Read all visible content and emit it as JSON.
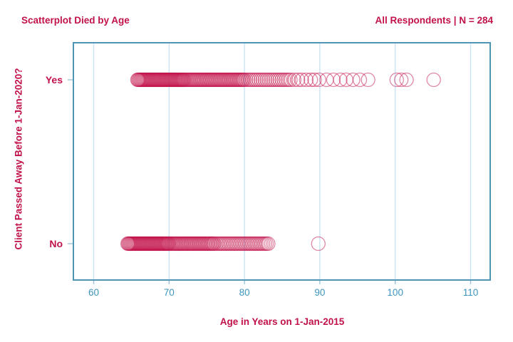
{
  "header": {
    "title": "Scatterplot Died by Age",
    "subtitle": "All Respondents | N = 284"
  },
  "colors": {
    "crimson_text": "#C1124A",
    "marker_stroke": "#C2114A",
    "marker_opacity": 0.5,
    "tick_label_blue": "#3D95BF",
    "plot_border": "#4E94B4",
    "gridline": "#CCE3F2",
    "tick_mark": "#9CC3DA"
  },
  "chart_data": {
    "type": "scatter",
    "title": "Scatterplot Died by Age",
    "annotation": "All Respondents | N = 284",
    "n_total": 284,
    "xlabel": "Age in Years on 1-Jan-2015",
    "ylabel": "Client Passed Away Before 1-Jan-2020?",
    "x_ticks": [
      60,
      70,
      80,
      90,
      100,
      110
    ],
    "xlim": [
      57.3,
      112.6
    ],
    "y_categories": [
      "Yes",
      "No"
    ],
    "grid": "vertical-gridlines-only",
    "legend": "none",
    "marker": "open-circle semi-transparent",
    "series": [
      {
        "name": "Yes",
        "count": 156,
        "ages": [
          65.8,
          65.9,
          66,
          66.1,
          66.2,
          66.3,
          66.4,
          66.5,
          66.6,
          66.7,
          66.8,
          66.9,
          67,
          67.1,
          67.2,
          67.3,
          67.4,
          67.5,
          67.6,
          67.7,
          67.8,
          67.9,
          68,
          68.1,
          68.2,
          68.3,
          68.4,
          68.5,
          68.6,
          68.7,
          68.8,
          68.9,
          69,
          69.1,
          69.2,
          69.3,
          69.4,
          69.5,
          69.6,
          69.7,
          69.8,
          69.9,
          70,
          70.1,
          70.2,
          70.3,
          70.4,
          70.5,
          70.6,
          70.7,
          70.8,
          70.9,
          71,
          71.1,
          71.2,
          71.3,
          71.4,
          71.5,
          71.6,
          71.7,
          71.8,
          71.9,
          72,
          72.15,
          72.3,
          72.45,
          72.6,
          72.75,
          72.9,
          73.05,
          73.2,
          73.35,
          73.5,
          73.65,
          73.8,
          73.95,
          74.1,
          74.25,
          74.4,
          74.55,
          74.7,
          74.85,
          75,
          75.15,
          75.3,
          75.45,
          75.6,
          75.75,
          75.9,
          76.05,
          76.2,
          76.35,
          76.5,
          76.65,
          76.8,
          76.95,
          77.1,
          77.25,
          77.4,
          77.55,
          77.7,
          77.85,
          78,
          78.15,
          78.3,
          78.45,
          78.6,
          78.75,
          78.9,
          79.05,
          79.2,
          79.35,
          79.5,
          79.65,
          79.8,
          79.95,
          80.2,
          80.48,
          80.76,
          81.04,
          81.32,
          81.6,
          81.88,
          82.16,
          82.44,
          82.72,
          83,
          83.28,
          83.56,
          83.84,
          84.12,
          84.4,
          84.68,
          84.96,
          85.24,
          85.52,
          85.8,
          86.1,
          86.6,
          87.1,
          87.6,
          88.2,
          88.8,
          89.3,
          89.9,
          90.9,
          91.8,
          92.7,
          93.5,
          94.4,
          95.3,
          96.4,
          100.2,
          100.8,
          101.5,
          105.1
        ]
      },
      {
        "name": "No",
        "count": 128,
        "ages": [
          64.5,
          64.6,
          64.7,
          64.8,
          64.9,
          65,
          65.1,
          65.2,
          65.3,
          65.4,
          65.5,
          65.6,
          65.7,
          65.8,
          65.9,
          66,
          66.1,
          66.2,
          66.3,
          66.4,
          66.5,
          66.6,
          66.7,
          66.8,
          66.9,
          67,
          67.1,
          67.2,
          67.3,
          67.4,
          67.5,
          67.6,
          67.7,
          67.8,
          67.9,
          68,
          68.1,
          68.2,
          68.3,
          68.4,
          68.5,
          68.6,
          68.7,
          68.8,
          68.9,
          69,
          69.1,
          69.2,
          69.3,
          69.4,
          69.5,
          69.6,
          69.7,
          69.8,
          69.9,
          70,
          70.15,
          70.3,
          70.45,
          70.6,
          70.75,
          70.9,
          71.05,
          71.2,
          71.35,
          71.5,
          71.65,
          71.8,
          71.95,
          72.1,
          72.25,
          72.4,
          72.55,
          72.7,
          72.85,
          73,
          73.15,
          73.3,
          73.45,
          73.6,
          73.75,
          73.9,
          74.05,
          74.2,
          74.35,
          74.5,
          74.65,
          74.8,
          74.95,
          75.1,
          75.25,
          75.4,
          75.55,
          75.7,
          75.85,
          76,
          76.25,
          76.48,
          76.71,
          76.94,
          77.17,
          77.4,
          77.63,
          77.86,
          78.09,
          78.32,
          78.55,
          78.78,
          79.01,
          79.24,
          79.47,
          79.7,
          79.93,
          80.16,
          80.39,
          80.62,
          80.85,
          81.08,
          81.31,
          81.54,
          81.77,
          82,
          82.23,
          82.46,
          82.69,
          82.92,
          83.15,
          89.8
        ]
      }
    ]
  }
}
